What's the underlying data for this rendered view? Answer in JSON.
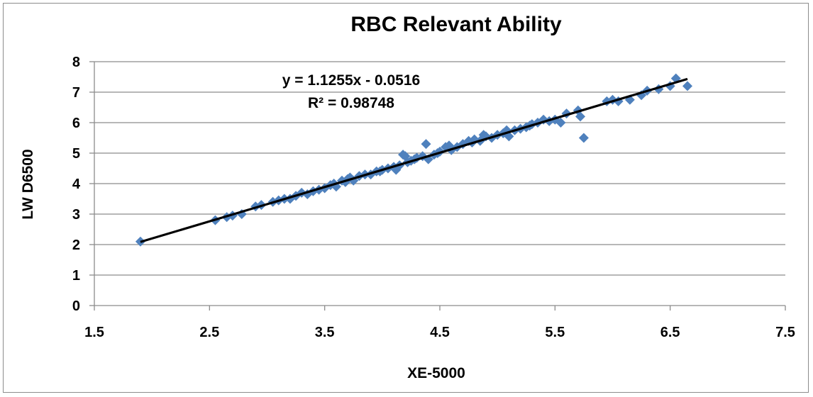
{
  "chart_data": {
    "type": "scatter",
    "title": "RBC Relevant Ability",
    "xlabel": "XE-5000",
    "ylabel": "LW D6500",
    "xlim": [
      1.5,
      7.5
    ],
    "ylim": [
      0,
      8
    ],
    "xticks": [
      1.5,
      2.5,
      3.5,
      4.5,
      5.5,
      6.5,
      7.5
    ],
    "xtick_labels": [
      "1.5",
      "2.5",
      "3.5",
      "4.5",
      "5.5",
      "6.5",
      "7.5"
    ],
    "yticks": [
      0,
      1,
      2,
      3,
      4,
      5,
      6,
      7,
      8
    ],
    "ytick_labels": [
      "0",
      "1",
      "2",
      "3",
      "4",
      "5",
      "6",
      "7",
      "8"
    ],
    "grid": "horizontal",
    "marker_color": "#4f81bd",
    "trendline": {
      "slope": 1.1255,
      "intercept": -0.0516,
      "x_range": [
        1.9,
        6.65
      ],
      "color": "#000000",
      "equation_label": "y = 1.1255x - 0.0516",
      "r2_label": "R² = 0.98748"
    },
    "series": [
      {
        "name": "LW D6500",
        "points": [
          [
            1.9,
            2.1
          ],
          [
            2.55,
            2.8
          ],
          [
            2.65,
            2.9
          ],
          [
            2.7,
            2.95
          ],
          [
            2.78,
            3.0
          ],
          [
            2.9,
            3.25
          ],
          [
            2.95,
            3.3
          ],
          [
            3.05,
            3.4
          ],
          [
            3.1,
            3.45
          ],
          [
            3.15,
            3.5
          ],
          [
            3.2,
            3.5
          ],
          [
            3.25,
            3.6
          ],
          [
            3.3,
            3.7
          ],
          [
            3.35,
            3.65
          ],
          [
            3.4,
            3.75
          ],
          [
            3.45,
            3.8
          ],
          [
            3.5,
            3.85
          ],
          [
            3.55,
            3.95
          ],
          [
            3.6,
            3.9
          ],
          [
            3.65,
            4.1
          ],
          [
            3.7,
            4.15
          ],
          [
            3.72,
            4.2
          ],
          [
            3.75,
            4.1
          ],
          [
            3.8,
            4.25
          ],
          [
            3.85,
            4.3
          ],
          [
            3.9,
            4.3
          ],
          [
            3.95,
            4.4
          ],
          [
            4.0,
            4.45
          ],
          [
            4.05,
            4.5
          ],
          [
            4.1,
            4.55
          ],
          [
            4.12,
            4.45
          ],
          [
            4.15,
            4.6
          ],
          [
            4.2,
            4.9
          ],
          [
            4.22,
            4.7
          ],
          [
            4.25,
            4.75
          ],
          [
            4.3,
            4.85
          ],
          [
            4.35,
            4.9
          ],
          [
            4.38,
            5.3
          ],
          [
            4.4,
            4.8
          ],
          [
            4.45,
            4.95
          ],
          [
            4.5,
            5.05
          ],
          [
            4.55,
            5.2
          ],
          [
            4.6,
            5.1
          ],
          [
            4.65,
            5.2
          ],
          [
            4.7,
            5.3
          ],
          [
            4.75,
            5.4
          ],
          [
            4.8,
            5.45
          ],
          [
            4.85,
            5.4
          ],
          [
            4.9,
            5.55
          ],
          [
            4.95,
            5.5
          ],
          [
            5.0,
            5.6
          ],
          [
            5.05,
            5.65
          ],
          [
            5.1,
            5.55
          ],
          [
            5.15,
            5.75
          ],
          [
            5.2,
            5.8
          ],
          [
            5.25,
            5.85
          ],
          [
            5.3,
            5.95
          ],
          [
            5.35,
            6.0
          ],
          [
            5.4,
            6.1
          ],
          [
            5.45,
            6.05
          ],
          [
            5.5,
            6.1
          ],
          [
            5.55,
            6.0
          ],
          [
            5.6,
            6.3
          ],
          [
            5.7,
            6.4
          ],
          [
            5.72,
            6.2
          ],
          [
            5.75,
            5.5
          ],
          [
            5.95,
            6.7
          ],
          [
            6.0,
            6.75
          ],
          [
            6.05,
            6.7
          ],
          [
            6.15,
            6.75
          ],
          [
            6.25,
            6.9
          ],
          [
            6.3,
            7.05
          ],
          [
            6.4,
            7.1
          ],
          [
            6.5,
            7.2
          ],
          [
            6.55,
            7.45
          ],
          [
            6.65,
            7.2
          ],
          [
            4.18,
            4.95
          ],
          [
            4.28,
            4.8
          ],
          [
            4.48,
            5.0
          ],
          [
            4.58,
            5.25
          ],
          [
            4.78,
            5.35
          ],
          [
            4.88,
            5.6
          ],
          [
            5.08,
            5.75
          ],
          [
            5.28,
            5.9
          ],
          [
            3.58,
            4.0
          ],
          [
            3.68,
            4.05
          ],
          [
            3.98,
            4.4
          ]
        ]
      }
    ]
  }
}
